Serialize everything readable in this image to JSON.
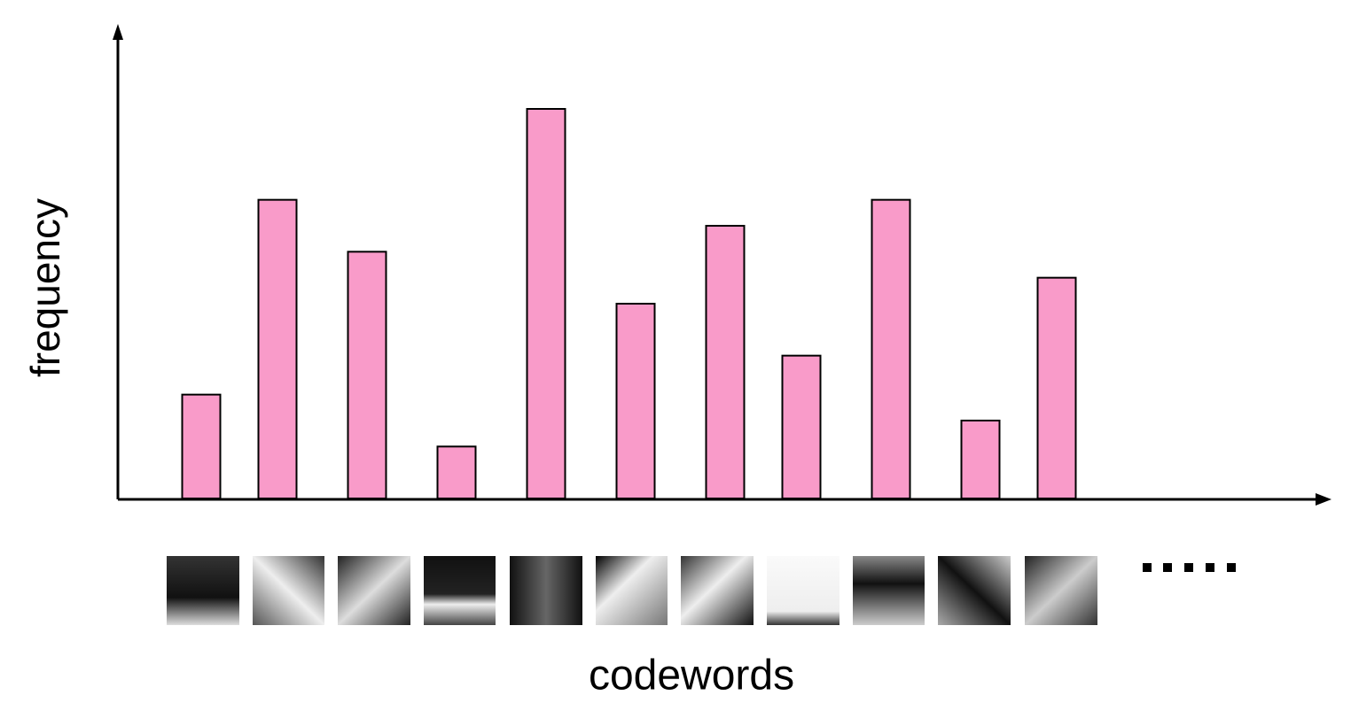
{
  "chart_data": {
    "type": "bar",
    "x_label": "codewords",
    "y_label": "frequency",
    "categories": [
      null,
      null,
      null,
      null,
      null,
      null,
      null,
      null,
      null,
      null,
      null
    ],
    "values": [
      8,
      23,
      19,
      4,
      30,
      15,
      21,
      11,
      23,
      6,
      17
    ],
    "color": "#f99bc9",
    "ylim": [
      0,
      36
    ],
    "grid": false
  }
}
